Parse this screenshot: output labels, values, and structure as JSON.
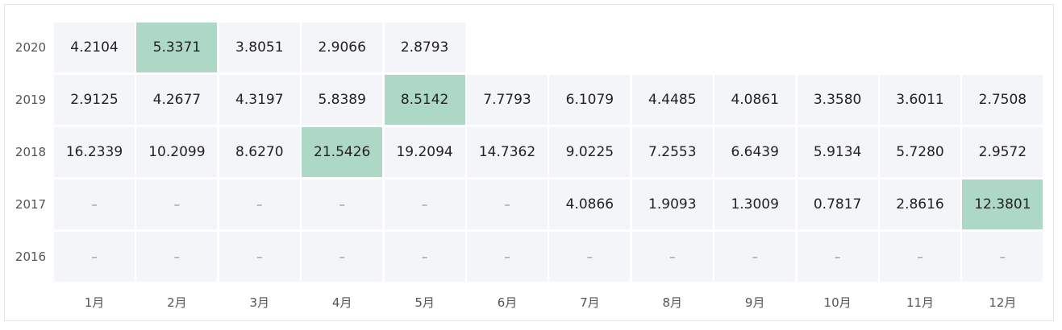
{
  "table": {
    "highlight_color": "#acd8c5",
    "cell_color": "#f4f5f9",
    "rows": [
      {
        "year": "2020",
        "cells": [
          "4.2104",
          "5.3371",
          "3.8051",
          "2.9066",
          "2.8793"
        ]
      },
      {
        "year": "2019",
        "cells": [
          "2.9125",
          "4.2677",
          "4.3197",
          "5.8389",
          "8.5142",
          "7.7793",
          "6.1079",
          "4.4485",
          "4.0861",
          "3.3580",
          "3.6011",
          "2.7508"
        ]
      },
      {
        "year": "2018",
        "cells": [
          "16.2339",
          "10.2099",
          "8.6270",
          "21.5426",
          "19.2094",
          "14.7362",
          "9.0225",
          "7.2553",
          "6.6439",
          "5.9134",
          "5.7280",
          "2.9572"
        ]
      },
      {
        "year": "2017",
        "cells": [
          "–",
          "–",
          "–",
          "–",
          "–",
          "–",
          "4.0866",
          "1.9093",
          "1.3009",
          "0.7817",
          "2.8616",
          "12.3801"
        ]
      },
      {
        "year": "2016",
        "cells": [
          "–",
          "–",
          "–",
          "–",
          "–",
          "–",
          "–",
          "–",
          "–",
          "–",
          "–",
          "–"
        ]
      }
    ],
    "columns": [
      "1月",
      "2月",
      "3月",
      "4月",
      "5月",
      "6月",
      "7月",
      "8月",
      "9月",
      "10月",
      "11月",
      "12月"
    ]
  }
}
